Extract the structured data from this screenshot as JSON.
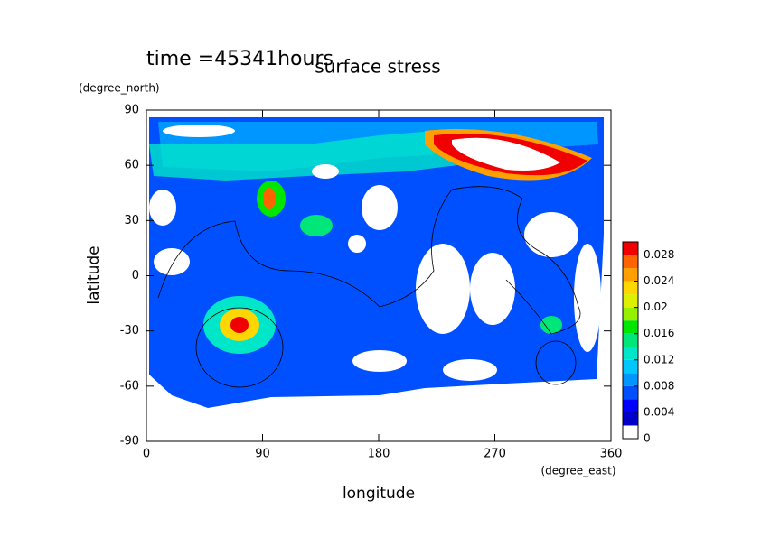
{
  "chart_data": {
    "type": "contour",
    "title": "surface stress",
    "subtitle": "time =45341hours",
    "xlabel": "longitude",
    "xunit": "(degree_east)",
    "ylabel": "latitude",
    "yunit": "(degree_north)",
    "xlim": [
      0,
      360
    ],
    "xticks": [
      0,
      90,
      180,
      270,
      360
    ],
    "ylim": [
      -90,
      90
    ],
    "yticks": [
      -90,
      -60,
      -30,
      0,
      30,
      60,
      90
    ],
    "colorbar": {
      "lim": [
        0,
        0.03
      ],
      "ticks": [
        0,
        0.004,
        0.008,
        0.012,
        0.016,
        0.02,
        0.024,
        0.028
      ],
      "colors": [
        "#ffffff",
        "#0000c8",
        "#0000ff",
        "#0050ff",
        "#0096ff",
        "#00c8ff",
        "#00e6c8",
        "#00e678",
        "#00e600",
        "#96f000",
        "#dcf000",
        "#ffd700",
        "#ffa000",
        "#ff6400",
        "#f00000"
      ]
    }
  }
}
